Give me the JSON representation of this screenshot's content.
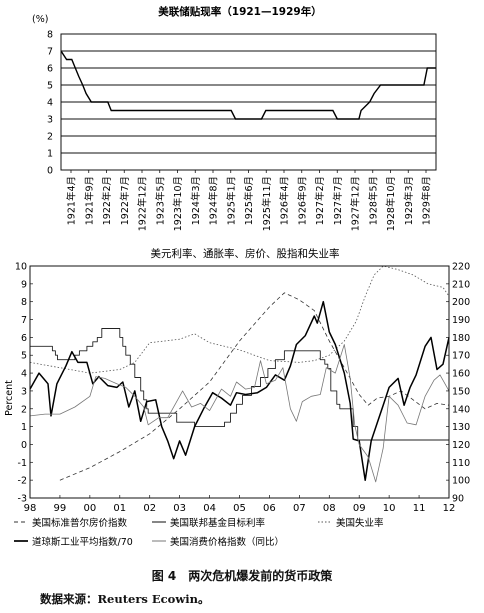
{
  "chart_data": [
    {
      "type": "line",
      "title": "美联储贴现率（1921—1929年）",
      "ylabel": "(%)",
      "ylim": [
        0,
        8
      ],
      "yticks": [
        0,
        1,
        2,
        3,
        4,
        5,
        6,
        7,
        8
      ],
      "grid": "horizontal",
      "x_range": [
        1921.17,
        1929.83
      ],
      "x_tick_labels": [
        "1921年4月",
        "1921年9月",
        "1922年2月",
        "1922年7月",
        "1922年12月",
        "1923年5月",
        "1923年10月",
        "1924年3月",
        "1924年8月",
        "1925年1月",
        "1925年6月",
        "1925年11月",
        "1926年4月",
        "1926年9月",
        "1927年2月",
        "1927年7月",
        "1927年12月",
        "1928年5月",
        "1928年10月",
        "1929年3月",
        "1929年8月"
      ],
      "series": [
        {
          "values": [
            [
              1921.17,
              7.0
            ],
            [
              1921.3,
              6.5
            ],
            [
              1921.42,
              6.5
            ],
            [
              1921.5,
              6.0
            ],
            [
              1921.58,
              5.5
            ],
            [
              1921.67,
              5.0
            ],
            [
              1921.75,
              4.5
            ],
            [
              1921.87,
              4.0
            ],
            [
              1922.25,
              4.0
            ],
            [
              1922.33,
              3.5
            ],
            [
              1925.1,
              3.5
            ],
            [
              1925.2,
              3.0
            ],
            [
              1925.8,
              3.0
            ],
            [
              1925.9,
              3.5
            ],
            [
              1927.45,
              3.5
            ],
            [
              1927.55,
              3.0
            ],
            [
              1928.05,
              3.0
            ],
            [
              1928.1,
              3.5
            ],
            [
              1928.3,
              4.0
            ],
            [
              1928.4,
              4.5
            ],
            [
              1928.55,
              5.0
            ],
            [
              1929.55,
              5.0
            ],
            [
              1929.63,
              6.0
            ],
            [
              1929.83,
              6.0
            ]
          ]
        }
      ]
    },
    {
      "type": "line",
      "title": "美元利率、通胀率、房价、股指和失业率",
      "ylabel": "Percent",
      "ylim": [
        -3,
        10
      ],
      "yticks": [
        -3,
        -2,
        -1,
        0,
        1,
        2,
        3,
        4,
        5,
        6,
        7,
        8,
        9,
        10
      ],
      "y2lim": [
        90,
        220
      ],
      "y2ticks": [
        90,
        100,
        110,
        120,
        130,
        140,
        150,
        160,
        170,
        180,
        190,
        200,
        210,
        220
      ],
      "xlim": [
        1998,
        2012
      ],
      "x_tick_labels": [
        "98",
        "99",
        "00",
        "01",
        "02",
        "03",
        "04",
        "05",
        "06",
        "07",
        "08",
        "09",
        "10",
        "11",
        "12"
      ],
      "legend_position": "bottom",
      "series": [
        {
          "name": "美国标准普尔房价指数",
          "axis": "right",
          "style": "dashed",
          "values": [
            [
              1999.0,
              100
            ],
            [
              2000.0,
              107
            ],
            [
              2001.0,
              116
            ],
            [
              2002.0,
              126
            ],
            [
              2003.0,
              140
            ],
            [
              2004.0,
              155
            ],
            [
              2005.0,
              178
            ],
            [
              2006.0,
              197
            ],
            [
              2006.5,
              205
            ],
            [
              2007.0,
              201
            ],
            [
              2007.5,
              195
            ],
            [
              2008.0,
              178
            ],
            [
              2008.5,
              163
            ],
            [
              2009.0,
              148
            ],
            [
              2009.3,
              142
            ],
            [
              2009.6,
              146
            ],
            [
              2010.0,
              147
            ],
            [
              2010.4,
              150
            ],
            [
              2010.8,
              145
            ],
            [
              2011.2,
              140
            ],
            [
              2011.6,
              143
            ],
            [
              2012.0,
              142
            ]
          ]
        },
        {
          "name": "美国联邦基金目标利率",
          "axis": "left",
          "style": "stepped-thin",
          "values": [
            [
              1998.0,
              5.5
            ],
            [
              1998.75,
              5.25
            ],
            [
              1998.85,
              5.0
            ],
            [
              1998.92,
              4.75
            ],
            [
              1999.5,
              5.0
            ],
            [
              1999.65,
              5.25
            ],
            [
              1999.9,
              5.5
            ],
            [
              2000.1,
              5.75
            ],
            [
              2000.25,
              6.0
            ],
            [
              2000.4,
              6.5
            ],
            [
              2001.0,
              6.0
            ],
            [
              2001.1,
              5.5
            ],
            [
              2001.2,
              5.0
            ],
            [
              2001.35,
              4.5
            ],
            [
              2001.5,
              3.75
            ],
            [
              2001.7,
              3.0
            ],
            [
              2001.8,
              2.5
            ],
            [
              2001.9,
              2.0
            ],
            [
              2001.95,
              1.75
            ],
            [
              2002.9,
              1.25
            ],
            [
              2003.5,
              1.0
            ],
            [
              2004.5,
              1.25
            ],
            [
              2004.7,
              1.75
            ],
            [
              2004.9,
              2.25
            ],
            [
              2005.1,
              2.75
            ],
            [
              2005.4,
              3.25
            ],
            [
              2005.7,
              3.75
            ],
            [
              2005.95,
              4.25
            ],
            [
              2006.2,
              4.75
            ],
            [
              2006.5,
              5.25
            ],
            [
              2007.7,
              4.75
            ],
            [
              2007.85,
              4.5
            ],
            [
              2007.95,
              4.25
            ],
            [
              2008.05,
              3.0
            ],
            [
              2008.25,
              2.25
            ],
            [
              2008.35,
              2.0
            ],
            [
              2008.8,
              1.0
            ],
            [
              2008.95,
              0.25
            ],
            [
              2012.0,
              0.25
            ]
          ]
        },
        {
          "name": "美国失业率",
          "axis": "left",
          "style": "dotted",
          "values": [
            [
              1998.0,
              4.6
            ],
            [
              1999.0,
              4.3
            ],
            [
              2000.0,
              4.0
            ],
            [
              2001.0,
              4.2
            ],
            [
              2001.5,
              4.6
            ],
            [
              2002.0,
              5.7
            ],
            [
              2002.5,
              5.8
            ],
            [
              2003.0,
              5.9
            ],
            [
              2003.5,
              6.2
            ],
            [
              2004.0,
              5.7
            ],
            [
              2005.0,
              5.3
            ],
            [
              2006.0,
              4.7
            ],
            [
              2007.0,
              4.6
            ],
            [
              2007.5,
              4.7
            ],
            [
              2008.0,
              5.0
            ],
            [
              2008.5,
              5.8
            ],
            [
              2008.9,
              6.9
            ],
            [
              2009.2,
              8.3
            ],
            [
              2009.5,
              9.5
            ],
            [
              2009.8,
              10.0
            ],
            [
              2010.3,
              9.8
            ],
            [
              2010.8,
              9.5
            ],
            [
              2011.3,
              9.0
            ],
            [
              2011.8,
              8.8
            ],
            [
              2012.0,
              8.3
            ]
          ]
        },
        {
          "name": "道琼斯工业平均指数/70",
          "axis": "right",
          "style": "solid-bold",
          "values": [
            [
              1998.0,
              151
            ],
            [
              1998.3,
              160
            ],
            [
              1998.6,
              154
            ],
            [
              1998.7,
              136
            ],
            [
              1998.9,
              154
            ],
            [
              1999.2,
              164
            ],
            [
              1999.4,
              172
            ],
            [
              1999.6,
              166
            ],
            [
              1999.9,
              166
            ],
            [
              2000.1,
              154
            ],
            [
              2000.3,
              158
            ],
            [
              2000.6,
              153
            ],
            [
              2000.9,
              152
            ],
            [
              2001.1,
              155
            ],
            [
              2001.3,
              141
            ],
            [
              2001.5,
              150
            ],
            [
              2001.7,
              133
            ],
            [
              2001.9,
              144
            ],
            [
              2002.2,
              145
            ],
            [
              2002.4,
              130
            ],
            [
              2002.6,
              122
            ],
            [
              2002.8,
              112
            ],
            [
              2003.0,
              122
            ],
            [
              2003.2,
              114
            ],
            [
              2003.5,
              130
            ],
            [
              2003.8,
              140
            ],
            [
              2004.1,
              149
            ],
            [
              2004.4,
              146
            ],
            [
              2004.7,
              142
            ],
            [
              2004.9,
              149
            ],
            [
              2005.2,
              148
            ],
            [
              2005.6,
              149
            ],
            [
              2005.9,
              152
            ],
            [
              2006.2,
              159
            ],
            [
              2006.5,
              156
            ],
            [
              2006.7,
              164
            ],
            [
              2006.9,
              176
            ],
            [
              2007.2,
              181
            ],
            [
              2007.5,
              192
            ],
            [
              2007.6,
              188
            ],
            [
              2007.8,
              200
            ],
            [
              2008.0,
              183
            ],
            [
              2008.2,
              176
            ],
            [
              2008.5,
              160
            ],
            [
              2008.7,
              143
            ],
            [
              2008.8,
              123
            ],
            [
              2009.0,
              122
            ],
            [
              2009.2,
              100
            ],
            [
              2009.4,
              122
            ],
            [
              2009.6,
              132
            ],
            [
              2009.8,
              142
            ],
            [
              2010.0,
              152
            ],
            [
              2010.3,
              157
            ],
            [
              2010.5,
              142
            ],
            [
              2010.7,
              152
            ],
            [
              2010.9,
              159
            ],
            [
              2011.2,
              175
            ],
            [
              2011.4,
              180
            ],
            [
              2011.6,
              162
            ],
            [
              2011.8,
              165
            ],
            [
              2012.0,
              180
            ]
          ]
        },
        {
          "name": "美国消费价格指数（同比）",
          "axis": "left",
          "style": "solid-thin",
          "values": [
            [
              1998.0,
              1.6
            ],
            [
              1998.5,
              1.7
            ],
            [
              1999.0,
              1.7
            ],
            [
              1999.5,
              2.1
            ],
            [
              2000.0,
              2.7
            ],
            [
              2000.2,
              3.8
            ],
            [
              2000.5,
              3.7
            ],
            [
              2000.9,
              3.4
            ],
            [
              2001.2,
              3.2
            ],
            [
              2001.5,
              2.7
            ],
            [
              2001.8,
              2.1
            ],
            [
              2001.95,
              1.1
            ],
            [
              2002.3,
              1.5
            ],
            [
              2002.6,
              1.5
            ],
            [
              2002.9,
              2.4
            ],
            [
              2003.1,
              3.0
            ],
            [
              2003.4,
              2.1
            ],
            [
              2003.7,
              2.3
            ],
            [
              2004.0,
              1.9
            ],
            [
              2004.4,
              3.1
            ],
            [
              2004.7,
              2.7
            ],
            [
              2004.9,
              3.5
            ],
            [
              2005.2,
              3.1
            ],
            [
              2005.5,
              3.2
            ],
            [
              2005.7,
              4.7
            ],
            [
              2005.9,
              3.4
            ],
            [
              2006.2,
              3.6
            ],
            [
              2006.45,
              4.3
            ],
            [
              2006.7,
              2.0
            ],
            [
              2006.9,
              1.3
            ],
            [
              2007.1,
              2.4
            ],
            [
              2007.4,
              2.7
            ],
            [
              2007.7,
              2.8
            ],
            [
              2007.9,
              4.3
            ],
            [
              2008.2,
              4.0
            ],
            [
              2008.5,
              5.6
            ],
            [
              2008.7,
              3.7
            ],
            [
              2008.85,
              1.1
            ],
            [
              2009.0,
              0.0
            ],
            [
              2009.3,
              -0.7
            ],
            [
              2009.55,
              -2.1
            ],
            [
              2009.8,
              -0.2
            ],
            [
              2010.0,
              2.7
            ],
            [
              2010.3,
              2.2
            ],
            [
              2010.6,
              1.2
            ],
            [
              2010.9,
              1.1
            ],
            [
              2011.2,
              2.7
            ],
            [
              2011.5,
              3.6
            ],
            [
              2011.7,
              3.9
            ],
            [
              2012.0,
              3.0
            ]
          ]
        }
      ]
    }
  ],
  "caption": "图 4　两次危机爆发前的货币政策",
  "source": "数据来源：Reuters Ecowin。"
}
